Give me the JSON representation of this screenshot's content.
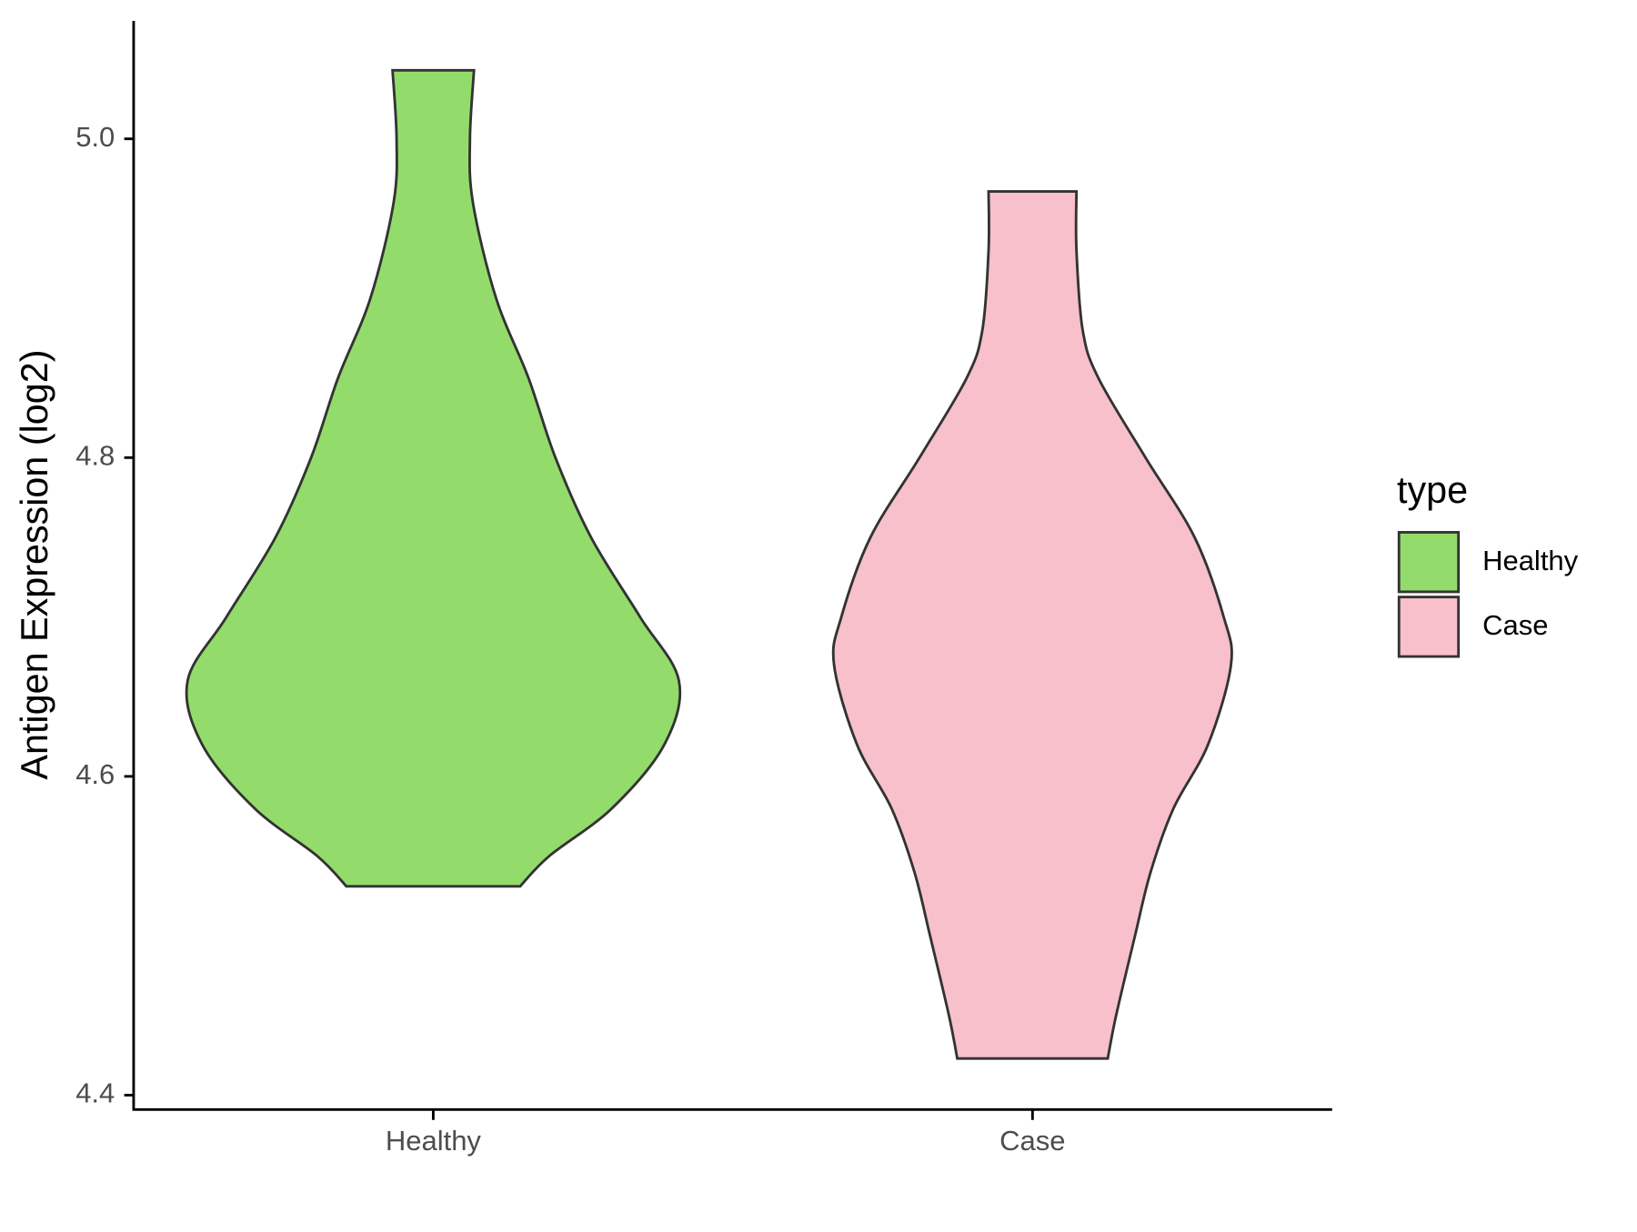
{
  "chart_data": {
    "type": "violin",
    "y_label": "Antigen Expression (log2)",
    "categories": [
      "Healthy",
      "Case"
    ],
    "legend_title": "type",
    "legend_position": "right",
    "ylim": [
      4.391,
      5.074
    ],
    "yticks": [
      4.4,
      4.6,
      4.8,
      {
        "value": 5,
        "label": "5.0"
      }
    ],
    "series": [
      {
        "name": "Healthy",
        "color": "#93dc6b",
        "y": [
          5.043,
          5.0,
          4.96,
          4.9,
          4.85,
          4.8,
          4.75,
          4.7,
          4.66,
          4.62,
          4.58,
          4.55,
          4.531
        ],
        "widths": [
          0.151,
          0.136,
          0.147,
          0.233,
          0.353,
          0.453,
          0.585,
          0.767,
          0.911,
          0.857,
          0.663,
          0.43,
          0.322
        ]
      },
      {
        "name": "Case",
        "color": "#f7c0cb",
        "y": [
          4.967,
          4.93,
          4.88,
          4.85,
          4.8,
          4.75,
          4.7,
          4.67,
          4.62,
          4.58,
          4.54,
          4.5,
          4.45,
          4.423
        ],
        "widths": [
          0.163,
          0.163,
          0.186,
          0.244,
          0.419,
          0.601,
          0.709,
          0.736,
          0.651,
          0.523,
          0.438,
          0.38,
          0.31,
          0.279
        ]
      }
    ]
  }
}
